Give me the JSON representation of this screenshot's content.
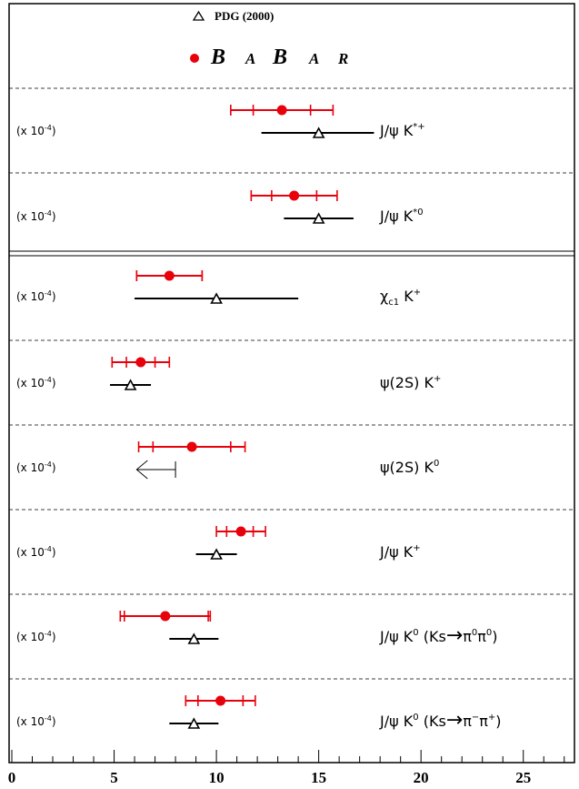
{
  "chart_data": {
    "type": "scatter",
    "xlim": [
      0,
      27.5
    ],
    "x_ticks": [
      "0",
      "5",
      "10",
      "15",
      "20",
      "25"
    ],
    "legend": {
      "pdg_label": "PDG (2000)",
      "babar_label": [
        "B",
        "A",
        "B",
        "A",
        "R"
      ],
      "placement": "top-center"
    },
    "series": [
      {
        "name": "BABAR",
        "marker": "filled-circle",
        "color": "#e8000b"
      },
      {
        "name": "PDG (2000)",
        "marker": "open-triangle",
        "color": "#000000"
      }
    ],
    "rows": [
      {
        "scale": "(x 10",
        "exp": "-4",
        "close": ")",
        "decay": [
          {
            "t": "J/ψ K"
          },
          {
            "t": "*+",
            "sup": true
          }
        ],
        "babar": {
          "value": 13.2,
          "stat": [
            11.8,
            14.6
          ],
          "total": [
            10.7,
            15.7
          ]
        },
        "pdg": {
          "value": 15.0,
          "total": [
            12.2,
            17.7
          ]
        }
      },
      {
        "scale": "(x 10",
        "exp": "-4",
        "close": ")",
        "decay": [
          {
            "t": "J/ψ K"
          },
          {
            "t": "*0",
            "sup": true
          }
        ],
        "babar": {
          "value": 13.8,
          "stat": [
            12.7,
            14.9
          ],
          "total": [
            11.7,
            15.9
          ]
        },
        "pdg": {
          "value": 15.0,
          "total": [
            13.3,
            16.7
          ]
        }
      },
      {
        "scale": "(x 10",
        "exp": "-4",
        "close": ")",
        "decay": [
          {
            "t": "χ"
          },
          {
            "t": "c1",
            "sub": true
          },
          {
            "t": " K"
          },
          {
            "t": "+",
            "sup": true
          }
        ],
        "babar": {
          "value": 7.7,
          "stat": [
            6.1,
            9.3
          ],
          "total": [
            6.1,
            9.3
          ]
        },
        "pdg": {
          "value": 10.0,
          "total": [
            6.0,
            14.0
          ]
        }
      },
      {
        "scale": "(x 10",
        "exp": "-4",
        "close": ")",
        "decay": [
          {
            "t": "ψ(2S) K"
          },
          {
            "t": "+",
            "sup": true
          }
        ],
        "babar": {
          "value": 6.3,
          "stat": [
            5.6,
            7.0
          ],
          "total": [
            4.9,
            7.7
          ]
        },
        "pdg": {
          "value": 5.8,
          "total": [
            4.8,
            6.8
          ]
        }
      },
      {
        "scale": "(x 10",
        "exp": "-4",
        "close": ")",
        "decay": [
          {
            "t": "ψ(2S) K"
          },
          {
            "t": "0",
            "sup": true
          }
        ],
        "babar": {
          "value": 8.8,
          "stat": [
            6.9,
            10.7
          ],
          "total": [
            6.2,
            11.4
          ]
        },
        "pdg": {
          "upper_limit": 8.0
        }
      },
      {
        "scale": "(x 10",
        "exp": "-4",
        "close": ")",
        "decay": [
          {
            "t": "J/ψ K"
          },
          {
            "t": "+",
            "sup": true
          }
        ],
        "babar": {
          "value": 11.2,
          "stat": [
            10.5,
            11.8
          ],
          "total": [
            10.0,
            12.4
          ]
        },
        "pdg": {
          "value": 10.0,
          "total": [
            9.0,
            11.0
          ]
        }
      },
      {
        "scale": "(x 10",
        "exp": "-4",
        "close": ")",
        "decay": [
          {
            "t": "J/ψ K"
          },
          {
            "t": "0",
            "sup": true
          },
          {
            "t": " (Ks"
          },
          {
            "t": "→",
            "arrow": true
          },
          {
            "t": "π"
          },
          {
            "t": "0",
            "sup": true
          },
          {
            "t": "π"
          },
          {
            "t": "0",
            "sup": true
          },
          {
            "t": ")"
          }
        ],
        "babar": {
          "value": 7.5,
          "stat": [
            5.5,
            9.6
          ],
          "total": [
            5.3,
            9.7
          ]
        },
        "pdg": {
          "value": 8.9,
          "total": [
            7.7,
            10.1
          ]
        }
      },
      {
        "scale": "(x 10",
        "exp": "-4",
        "close": ")",
        "decay": [
          {
            "t": "J/ψ K"
          },
          {
            "t": "0",
            "sup": true
          },
          {
            "t": " (Ks"
          },
          {
            "t": "→",
            "arrow": true
          },
          {
            "t": "π"
          },
          {
            "t": "−",
            "sup": true
          },
          {
            "t": "π"
          },
          {
            "t": "+",
            "sup": true
          },
          {
            "t": ")"
          }
        ],
        "babar": {
          "value": 10.2,
          "stat": [
            9.1,
            11.3
          ],
          "total": [
            8.5,
            11.9
          ]
        },
        "pdg": {
          "value": 8.9,
          "total": [
            7.7,
            10.1
          ]
        }
      }
    ]
  }
}
